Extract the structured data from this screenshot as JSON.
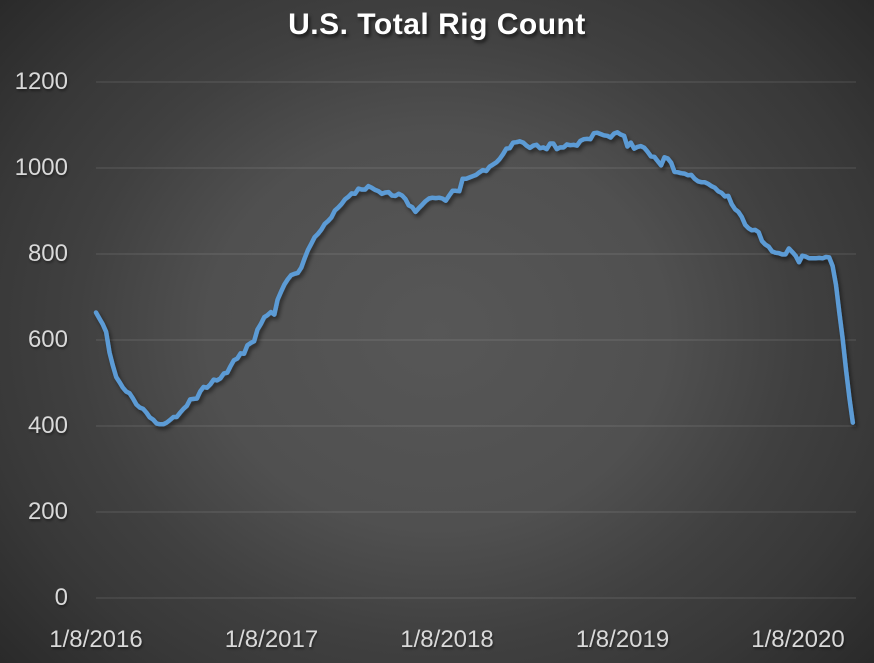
{
  "chart_data": {
    "type": "line",
    "title": "U.S. Total Rig Count",
    "xlabel": "",
    "ylabel": "",
    "ylim": [
      0,
      1200
    ],
    "grid": "horizontal",
    "legend": "none",
    "x_tick_labels": [
      "1/8/2016",
      "1/8/2017",
      "1/8/2018",
      "1/8/2019",
      "1/8/2020"
    ],
    "y_tick_labels": [
      "1200",
      "1000",
      "800",
      "600",
      "400",
      "200",
      "0"
    ],
    "y_tick_values": [
      1200,
      1000,
      800,
      600,
      400,
      200,
      0
    ],
    "colors": {
      "line": "#5B9BD5",
      "title": "#FFFFFF",
      "axis_labels": "#D9D9D9",
      "gridline": "rgba(255,255,255,0.14)"
    },
    "series": [
      {
        "name": "U.S. Total Rig Count",
        "color": "#5B9BD5",
        "start_date": "1/8/2016",
        "end_date": "5/1/2020",
        "interval": "weekly",
        "values": [
          664,
          650,
          637,
          619,
          571,
          541,
          514,
          502,
          489,
          480,
          476,
          464,
          450,
          443,
          440,
          431,
          420,
          415,
          406,
          404,
          404,
          408,
          414,
          421,
          421,
          431,
          440,
          447,
          462,
          463,
          464,
          481,
          491,
          489,
          497,
          508,
          506,
          511,
          522,
          524,
          539,
          553,
          557,
          569,
          568,
          588,
          593,
          597,
          624,
          637,
          653,
          658,
          665,
          659,
          694,
          712,
          729,
          741,
          751,
          754,
          756,
          768,
          789,
          809,
          824,
          839,
          847,
          857,
          870,
          877,
          885,
          901,
          908,
          916,
          927,
          933,
          941,
          940,
          952,
          950,
          950,
          958,
          954,
          949,
          946,
          940,
          943,
          944,
          936,
          935,
          940,
          936,
          928,
          913,
          909,
          898,
          907,
          915,
          923,
          929,
          931,
          930,
          931,
          929,
          924,
          936,
          947,
          947,
          946,
          975,
          975,
          978,
          981,
          984,
          990,
          995,
          993,
          1003,
          1008,
          1013,
          1021,
          1032,
          1045,
          1046,
          1059,
          1060,
          1062,
          1059,
          1052,
          1047,
          1052,
          1054,
          1046,
          1048,
          1044,
          1057,
          1057,
          1044,
          1048,
          1048,
          1055,
          1053,
          1054,
          1052,
          1063,
          1067,
          1068,
          1067,
          1081,
          1082,
          1079,
          1076,
          1075,
          1071,
          1080,
          1083,
          1078,
          1075,
          1050,
          1059,
          1045,
          1049,
          1051,
          1047,
          1038,
          1027,
          1026,
          1016,
          1006,
          1025,
          1022,
          1012,
          991,
          990,
          988,
          987,
          983,
          984,
          975,
          969,
          967,
          967,
          963,
          958,
          954,
          946,
          942,
          934,
          935,
          916,
          904,
          898,
          886,
          868,
          860,
          855,
          856,
          851,
          830,
          822,
          817,
          806,
          803,
          802,
          799,
          799,
          813,
          805,
          796,
          781,
          796,
          794,
          790,
          790,
          790,
          791,
          790,
          793,
          792,
          772,
          728,
          664,
          602,
          529,
          465,
          408
        ]
      }
    ]
  }
}
